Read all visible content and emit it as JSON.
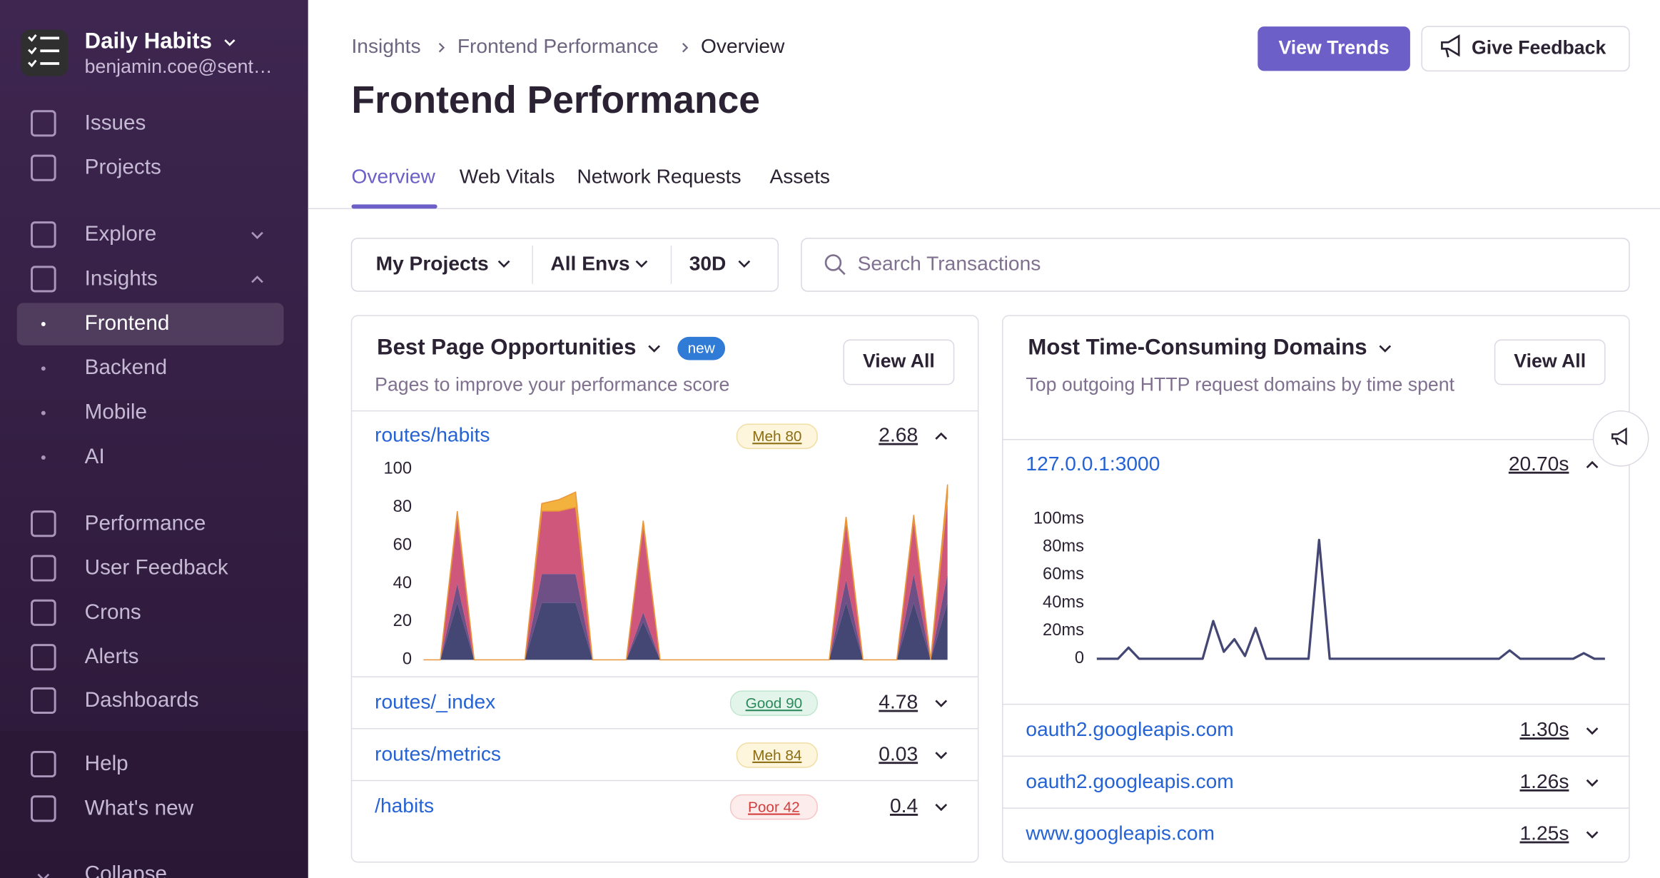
{
  "sidebar": {
    "org_name": "Daily Habits",
    "user_email": "benjamin.coe@sent…",
    "nav": [
      "Issues",
      "Projects",
      "Explore",
      "Insights",
      "Frontend",
      "Backend",
      "Mobile",
      "AI",
      "Performance",
      "User Feedback",
      "Crons",
      "Alerts",
      "Dashboards",
      "Help",
      "What's new",
      "Collapse"
    ]
  },
  "breadcrumbs": [
    "Insights",
    "Frontend Performance",
    "Overview"
  ],
  "header": {
    "title": "Frontend Performance",
    "primary_button": "View Trends",
    "feedback_button": "Give Feedback"
  },
  "tabs": [
    "Overview",
    "Web Vitals",
    "Network Requests",
    "Assets"
  ],
  "filters": [
    "My Projects",
    "All Envs",
    "30D"
  ],
  "search_placeholder": "Search Transactions",
  "page_opportunities": {
    "title": "Best Page Opportunities",
    "badge": "new",
    "subtitle": "Pages to improve your performance score",
    "button": "View All",
    "rows": [
      {
        "name": "routes/habits",
        "score": "Meh 80",
        "value": "2.68"
      },
      {
        "name": "routes/_index",
        "score": "Good 90",
        "value": "4.78"
      },
      {
        "name": "routes/metrics",
        "score": "Meh 84",
        "value": "0.03"
      },
      {
        "name": "/habits",
        "score": "Poor 42",
        "value": "0.4"
      }
    ],
    "chart_data": {
      "type": "area",
      "stacked": true,
      "ylim": [
        0,
        100
      ],
      "yticks": [
        0,
        20,
        40,
        60,
        80,
        100
      ],
      "series": [
        {
          "color": "#444674",
          "values": [
            0,
            0,
            30,
            0,
            0,
            0,
            0,
            30,
            30,
            30,
            0,
            0,
            0,
            20,
            0,
            0,
            0,
            0,
            0,
            0,
            0,
            0,
            0,
            0,
            0,
            30,
            0,
            0,
            0,
            30,
            0,
            30
          ]
        },
        {
          "color": "#6e4f86",
          "values": [
            0,
            0,
            10,
            0,
            0,
            0,
            0,
            15,
            15,
            15,
            0,
            0,
            0,
            5,
            0,
            0,
            0,
            0,
            0,
            0,
            0,
            0,
            0,
            0,
            0,
            12,
            0,
            0,
            0,
            15,
            0,
            15
          ]
        },
        {
          "color": "#d0577c",
          "values": [
            0,
            0,
            36,
            0,
            0,
            0,
            0,
            33,
            33,
            35,
            0,
            0,
            0,
            46,
            0,
            0,
            0,
            0,
            0,
            0,
            0,
            0,
            0,
            0,
            0,
            31,
            0,
            0,
            0,
            29,
            0,
            40
          ]
        },
        {
          "color": "#f2b23d",
          "values": [
            0,
            0,
            2,
            0,
            0,
            0,
            0,
            4,
            6,
            8,
            0,
            0,
            0,
            2,
            0,
            0,
            0,
            0,
            0,
            0,
            0,
            0,
            0,
            0,
            0,
            2,
            0,
            0,
            0,
            2,
            0,
            7
          ]
        }
      ]
    }
  },
  "domains": {
    "title": "Most Time-Consuming Domains",
    "subtitle": "Top outgoing HTTP request domains by time spent",
    "button": "View All",
    "rows": [
      {
        "name": "127.0.0.1:3000",
        "value": "20.70s"
      },
      {
        "name": "oauth2.googleapis.com",
        "value": "1.30s"
      },
      {
        "name": "oauth2.googleapis.com",
        "value": "1.26s"
      },
      {
        "name": "www.googleapis.com",
        "value": "1.25s"
      }
    ],
    "chart_data": {
      "type": "line",
      "color": "#444674",
      "ylim": [
        0,
        100
      ],
      "yticks": [
        0,
        {
          "value": 20,
          "label": "20ms"
        },
        {
          "value": 40,
          "label": "40ms"
        },
        {
          "value": 60,
          "label": "60ms"
        },
        {
          "value": 80,
          "label": "80ms"
        },
        {
          "value": 100,
          "label": "100ms"
        }
      ],
      "values": [
        0,
        0,
        0,
        8,
        0,
        0,
        0,
        0,
        0,
        0,
        0,
        27,
        5,
        14,
        2,
        22,
        0,
        0,
        0,
        0,
        0,
        85,
        0,
        0,
        0,
        0,
        0,
        0,
        0,
        0,
        0,
        0,
        0,
        0,
        0,
        0,
        0,
        0,
        0,
        6,
        0,
        0,
        0,
        0,
        0,
        0,
        4,
        0,
        0
      ]
    }
  }
}
